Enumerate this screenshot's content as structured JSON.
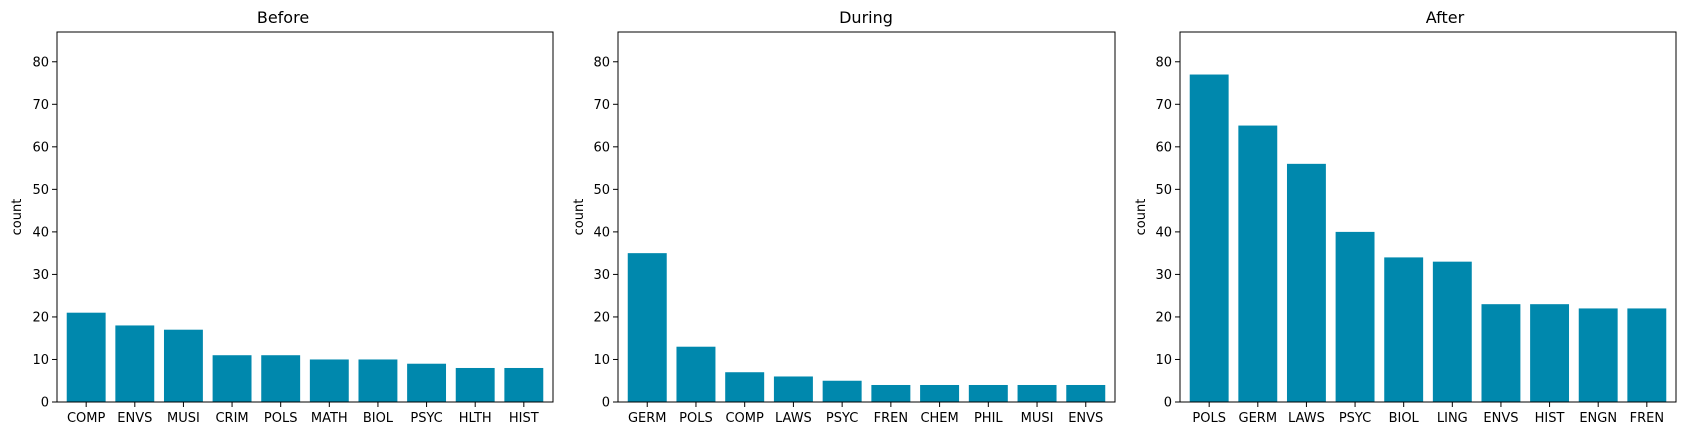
{
  "colors": {
    "bar": "#0088ad",
    "axis": "#000000",
    "background": "#ffffff"
  },
  "chart_data": [
    {
      "type": "bar",
      "title": "Before",
      "xlabel": "",
      "ylabel": "count",
      "ylim": [
        0,
        87
      ],
      "yticks": [
        0,
        10,
        20,
        30,
        40,
        50,
        60,
        70,
        80
      ],
      "grid": false,
      "categories": [
        "COMP",
        "ENVS",
        "MUSI",
        "CRIM",
        "POLS",
        "MATH",
        "BIOL",
        "PSYC",
        "HLTH",
        "HIST"
      ],
      "values": [
        21,
        18,
        17,
        11,
        11,
        10,
        10,
        9,
        8,
        8
      ]
    },
    {
      "type": "bar",
      "title": "During",
      "xlabel": "",
      "ylabel": "count",
      "ylim": [
        0,
        87
      ],
      "yticks": [
        0,
        10,
        20,
        30,
        40,
        50,
        60,
        70,
        80
      ],
      "grid": false,
      "categories": [
        "GERM",
        "POLS",
        "COMP",
        "LAWS",
        "PSYC",
        "FREN",
        "CHEM",
        "PHIL",
        "MUSI",
        "ENVS"
      ],
      "values": [
        35,
        13,
        7,
        6,
        5,
        4,
        4,
        4,
        4,
        4
      ]
    },
    {
      "type": "bar",
      "title": "After",
      "xlabel": "",
      "ylabel": "count",
      "ylim": [
        0,
        87
      ],
      "yticks": [
        0,
        10,
        20,
        30,
        40,
        50,
        60,
        70,
        80
      ],
      "grid": false,
      "categories": [
        "POLS",
        "GERM",
        "LAWS",
        "PSYC",
        "BIOL",
        "LING",
        "ENVS",
        "HIST",
        "ENGN",
        "FREN"
      ],
      "values": [
        77,
        65,
        56,
        40,
        34,
        33,
        23,
        23,
        22,
        22
      ]
    }
  ]
}
